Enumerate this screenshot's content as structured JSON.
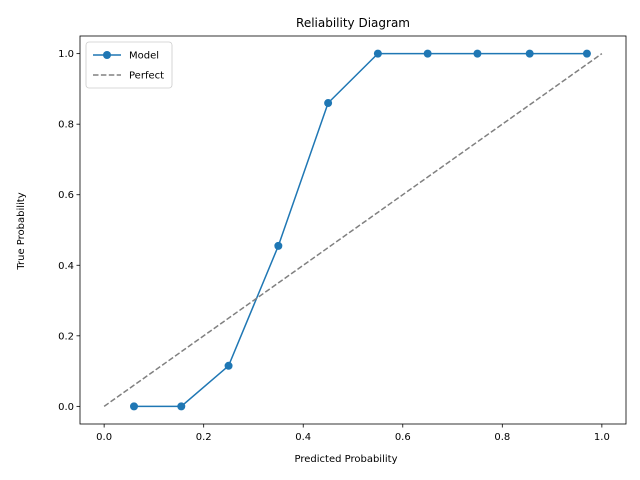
{
  "chart_data": {
    "type": "line",
    "title": "Reliability Diagram",
    "xlabel": "Predicted Probability",
    "ylabel": "True Probability",
    "xlim": [
      -0.0485,
      1.0485
    ],
    "ylim": [
      -0.05,
      1.05
    ],
    "xticks": [
      0.0,
      0.2,
      0.4,
      0.6,
      0.8,
      1.0
    ],
    "xtick_labels": [
      "0.0",
      "0.2",
      "0.4",
      "0.6",
      "0.8",
      "1.0"
    ],
    "yticks": [
      0.0,
      0.2,
      0.4,
      0.6,
      0.8,
      1.0
    ],
    "ytick_labels": [
      "0.0",
      "0.2",
      "0.4",
      "0.6",
      "0.8",
      "1.0"
    ],
    "grid": false,
    "legend_position": "upper-left",
    "series": [
      {
        "name": "Model",
        "style": "solid-with-circle-markers",
        "color": "#1f77b4",
        "x": [
          0.06,
          0.155,
          0.25,
          0.35,
          0.45,
          0.55,
          0.65,
          0.75,
          0.855,
          0.97
        ],
        "y": [
          0.0,
          0.0,
          0.115,
          0.455,
          0.86,
          1.0,
          1.0,
          1.0,
          1.0,
          1.0
        ]
      },
      {
        "name": "Perfect",
        "style": "dashed",
        "color": "#808080",
        "x": [
          0.0,
          1.0
        ],
        "y": [
          0.0,
          1.0
        ]
      }
    ]
  }
}
